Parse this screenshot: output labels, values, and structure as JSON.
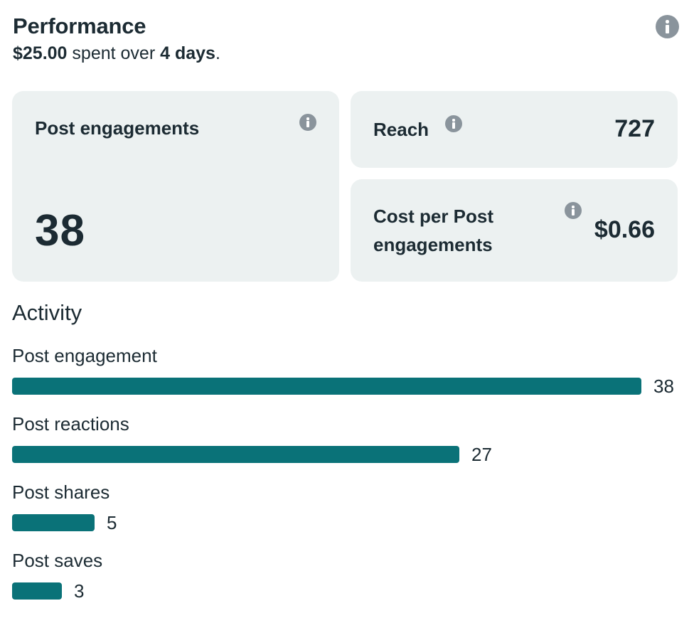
{
  "performance": {
    "title": "Performance",
    "spent": "$25.00",
    "spent_text": " spent over ",
    "days": "4 days",
    "period": "."
  },
  "metrics": {
    "engagements": {
      "label": "Post engagements",
      "value": "38"
    },
    "reach": {
      "label": "Reach",
      "value": "727"
    },
    "cost": {
      "label": "Cost per Post engagements",
      "value": "$0.66"
    }
  },
  "activity": {
    "title": "Activity",
    "rows": [
      {
        "label": "Post engagement",
        "value": 38
      },
      {
        "label": "Post reactions",
        "value": 27
      },
      {
        "label": "Post shares",
        "value": 5
      },
      {
        "label": "Post saves",
        "value": 3
      }
    ],
    "max_value": 38
  },
  "colors": {
    "bar": "#0a7278",
    "card_bg": "#ecf1f1",
    "text": "#1c2b33",
    "icon": "#8a949c"
  },
  "icons": {
    "info": "info-icon"
  }
}
